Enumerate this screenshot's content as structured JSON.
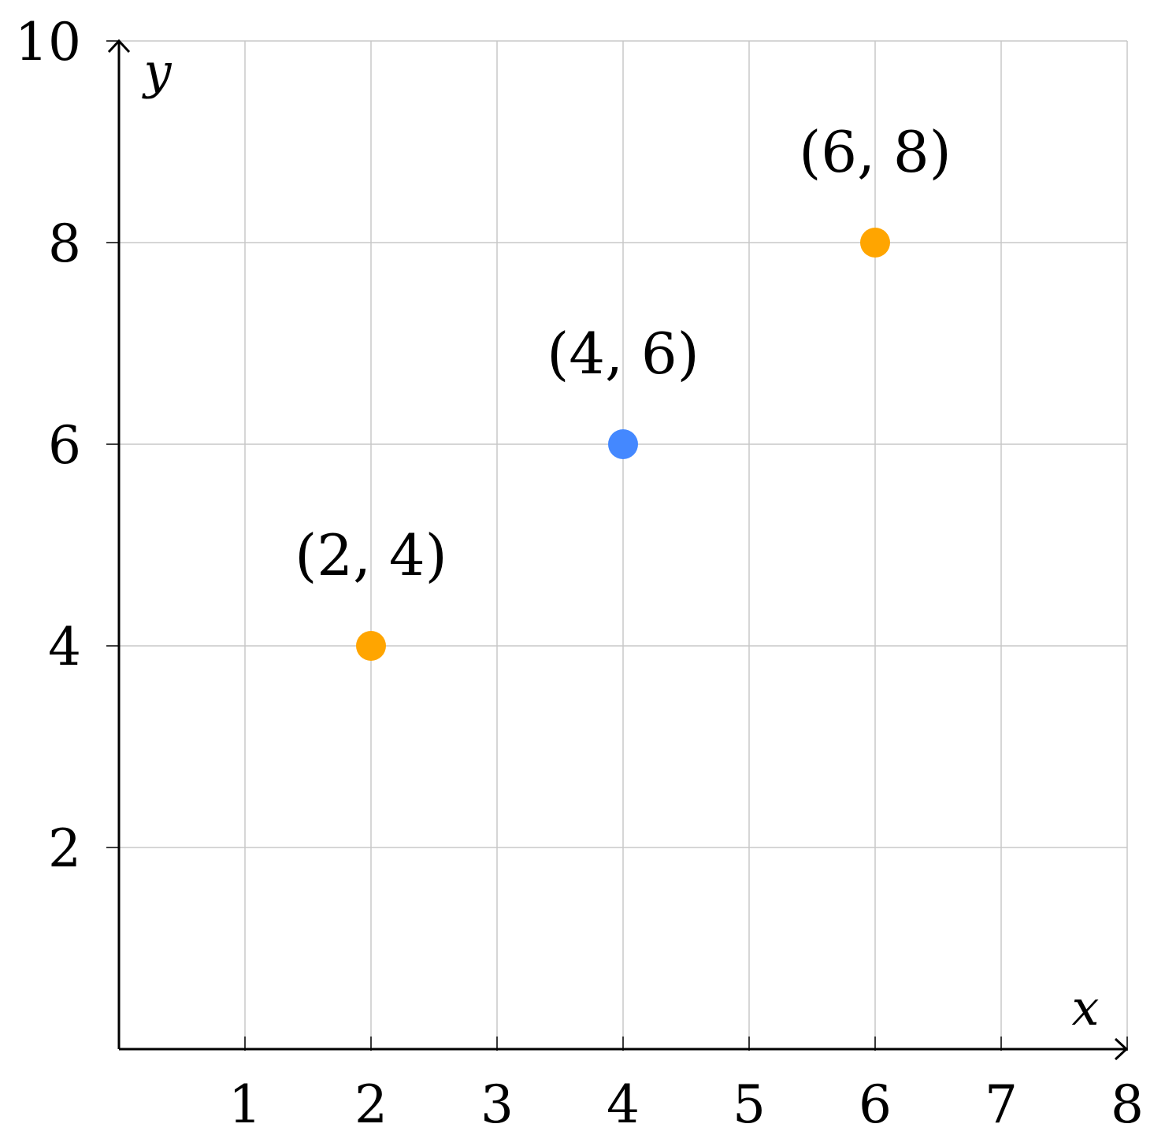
{
  "chart_data": {
    "type": "scatter",
    "title": "",
    "xlabel": "x",
    "ylabel": "y",
    "xlim": [
      0,
      8
    ],
    "ylim": [
      0,
      10
    ],
    "x_ticks": [
      1,
      2,
      3,
      4,
      5,
      6,
      7,
      8
    ],
    "y_ticks": [
      2,
      4,
      6,
      8,
      10
    ],
    "grid": true,
    "points": [
      {
        "x": 2,
        "y": 4,
        "label": "(2, 4)",
        "color": "#FFA500"
      },
      {
        "x": 4,
        "y": 6,
        "label": "(4, 6)",
        "color": "#4488FF"
      },
      {
        "x": 6,
        "y": 8,
        "label": "(6, 8)",
        "color": "#FFA500"
      }
    ]
  }
}
